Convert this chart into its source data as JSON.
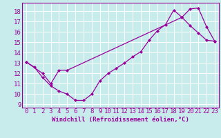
{
  "xlabel": "Windchill (Refroidissement éolien,°C)",
  "bg_color": "#c8ecec",
  "line_color": "#990099",
  "grid_color": "#ffffff",
  "xlim": [
    -0.5,
    23.5
  ],
  "ylim": [
    8.7,
    18.8
  ],
  "yticks": [
    9,
    10,
    11,
    12,
    13,
    14,
    15,
    16,
    17,
    18
  ],
  "xticks": [
    0,
    1,
    2,
    3,
    4,
    5,
    6,
    7,
    8,
    9,
    10,
    11,
    12,
    13,
    14,
    15,
    16,
    17,
    18,
    19,
    20,
    21,
    22,
    23
  ],
  "line1_x": [
    0,
    1,
    2,
    3,
    4,
    5,
    6,
    7,
    8,
    9,
    10,
    11,
    12,
    13,
    14,
    15,
    16,
    17,
    18,
    19,
    20,
    21,
    22,
    23
  ],
  "line1_y": [
    13.1,
    12.6,
    11.6,
    10.8,
    10.3,
    10.0,
    9.4,
    9.4,
    10.0,
    11.3,
    12.0,
    12.5,
    13.0,
    13.6,
    14.1,
    15.2,
    16.1,
    16.7,
    18.1,
    17.4,
    16.6,
    15.9,
    15.2,
    15.1
  ],
  "line2_x": [
    0,
    2,
    3,
    4,
    5,
    19,
    20,
    21,
    22,
    23
  ],
  "line2_y": [
    13.1,
    12.0,
    11.0,
    12.3,
    12.3,
    17.4,
    18.2,
    18.3,
    16.5,
    15.1
  ],
  "marker": "D",
  "marker_size": 2.5,
  "linewidth": 0.9,
  "tick_fontsize": 6.5,
  "xlabel_fontsize": 6.5
}
